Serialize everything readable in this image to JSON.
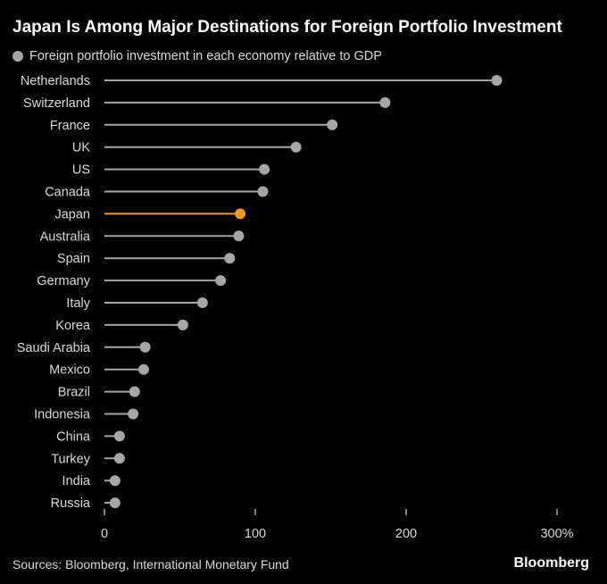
{
  "header": {
    "title": "Japan Is Among Major Destinations for Foreign Portfolio Investment"
  },
  "footer": {
    "source": "Sources: Bloomberg, International Monetary Fund",
    "brand": "Bloomberg"
  },
  "colors": {
    "background": "#000000",
    "default_marker": "#a6a6a6",
    "highlight_marker": "#e89b2f",
    "text": "#d9d9d9",
    "tick_line": "#ffffff"
  },
  "chart_data": {
    "type": "scatter",
    "style": "lollipop",
    "xlim": [
      0,
      300
    ],
    "x_ticks": [
      0,
      100,
      200,
      300
    ],
    "x_tick_labels": [
      "0",
      "100",
      "200",
      "300%"
    ],
    "legend": [
      {
        "name": "Foreign portfolio investment in each economy relative to GDP",
        "color": "#a6a6a6"
      }
    ],
    "categories": [
      "Netherlands",
      "Switzerland",
      "France",
      "UK",
      "US",
      "Canada",
      "Japan",
      "Australia",
      "Spain",
      "Germany",
      "Italy",
      "Korea",
      "Saudi Arabia",
      "Mexico",
      "Brazil",
      "Indonesia",
      "China",
      "Turkey",
      "India",
      "Russia"
    ],
    "values": [
      260,
      186,
      151,
      127,
      106,
      105,
      90,
      89,
      83,
      77,
      65,
      52,
      27,
      26,
      20,
      19,
      10,
      10,
      7,
      7
    ],
    "highlight": "Japan"
  }
}
